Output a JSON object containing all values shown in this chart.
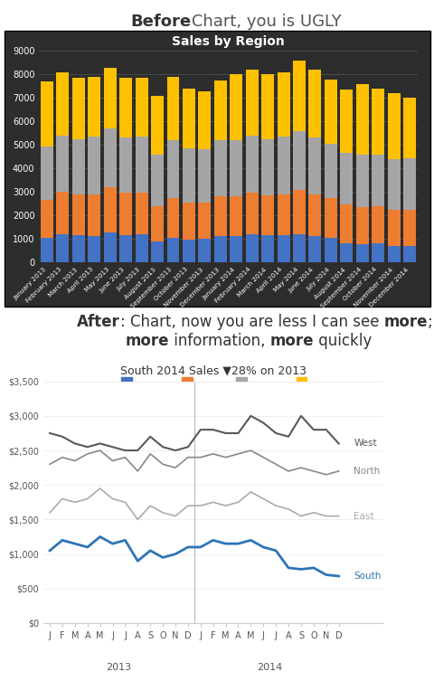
{
  "before_title_bold": "Before",
  "before_title_rest": ": Chart, you is UGLY",
  "after_title_line1_bold": "After",
  "after_title_line1_rest": ": Chart, now you are less I can see ",
  "after_title_line1_bold2": "more",
  "after_title_line1_end": ";",
  "after_title_line2_bold1": "more",
  "after_title_line2_mid": " information, ",
  "after_title_line2_bold2": "more",
  "after_title_line2_end": " quickly",
  "bar_chart_title": "Sales by Region",
  "bar_bg_color": "#2d2d2d",
  "bar_text_color": "#ffffff",
  "bar_grid_color": "#555555",
  "bar_legend": [
    "South",
    "East",
    "North",
    "West"
  ],
  "bar_colors": [
    "#4472C4",
    "#ED7D31",
    "#A5A5A5",
    "#FFC000"
  ],
  "months_labels": [
    "January 2013",
    "February 2013",
    "March 2013",
    "April 2013",
    "May 2013",
    "June 2013",
    "July 2013",
    "August 2013",
    "September 2013",
    "October 2013",
    "November 2013",
    "December 2013",
    "January 2014",
    "February 2014",
    "March 2014",
    "April 2014",
    "May 2014",
    "June 2014",
    "July 2014",
    "August 2014",
    "September 2014",
    "October 2014",
    "November 2014",
    "December 2014"
  ],
  "south_2013": [
    1050,
    1200,
    1150,
    1100,
    1250,
    1150,
    1200,
    900,
    1050,
    950,
    1000,
    1100
  ],
  "east_2013": [
    1600,
    1800,
    1750,
    1800,
    1950,
    1800,
    1750,
    1500,
    1700,
    1600,
    1550,
    1700
  ],
  "north_2013": [
    2300,
    2400,
    2350,
    2450,
    2500,
    2350,
    2400,
    2200,
    2450,
    2300,
    2250,
    2400
  ],
  "west_2013": [
    2750,
    2700,
    2600,
    2550,
    2600,
    2550,
    2500,
    2500,
    2700,
    2550,
    2500,
    2550
  ],
  "south_2014": [
    1100,
    1200,
    1150,
    1150,
    1200,
    1100,
    1050,
    800,
    780,
    800,
    700,
    680
  ],
  "east_2014": [
    1700,
    1750,
    1700,
    1750,
    1900,
    1800,
    1700,
    1650,
    1550,
    1600,
    1550,
    1550
  ],
  "north_2014": [
    2400,
    2450,
    2400,
    2450,
    2500,
    2400,
    2300,
    2200,
    2250,
    2200,
    2150,
    2200
  ],
  "west_2014": [
    2800,
    2800,
    2750,
    2750,
    3000,
    2900,
    2750,
    2700,
    3000,
    2800,
    2800,
    2600
  ],
  "line_chart_title": "South 2014 Sales ▼28% on 2013",
  "south_color": "#2E75B6",
  "other_color_dark": "#595959",
  "other_color_light": "#ABABAB"
}
